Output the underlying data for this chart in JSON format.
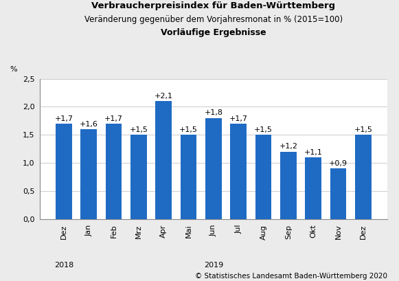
{
  "categories": [
    "Dez",
    "Jan",
    "Feb",
    "Mrz",
    "Apr",
    "Mai",
    "Jun",
    "Jul",
    "Aug",
    "Sep",
    "Okt",
    "Nov",
    "Dez"
  ],
  "values": [
    1.7,
    1.6,
    1.7,
    1.5,
    2.1,
    1.5,
    1.8,
    1.7,
    1.5,
    1.2,
    1.1,
    0.9,
    1.5
  ],
  "labels": [
    "+1,7",
    "+1,6",
    "+1,7",
    "+1,5",
    "+2,1",
    "+1,5",
    "+1,8",
    "+1,7",
    "+1,5",
    "+1,2",
    "+1,1",
    "+0,9",
    "+1,5"
  ],
  "bar_color": "#1F6BC4",
  "title_line1": "Verbraucherpreisindex für Baden-Württemberg",
  "title_line2": "Veränderung gegenüber dem Vorjahresmonat in % (2015=100)",
  "title_line3": "Vorläufige Ergebnisse",
  "ylabel": "%",
  "ylim": [
    0.0,
    2.5
  ],
  "yticks": [
    0.0,
    0.5,
    1.0,
    1.5,
    2.0,
    2.5
  ],
  "ytick_labels": [
    "0,0",
    "0,5",
    "1,0",
    "1,5",
    "2,0",
    "2,5"
  ],
  "year_2018_bar": 0,
  "year_2019_bar": 6,
  "footer": "© Statistisches Landesamt Baden-Württemberg 2020",
  "bg_color": "#EBEBEB",
  "plot_bg_color": "#FFFFFF",
  "grid_color": "#CCCCCC",
  "title_fontsize": 9.5,
  "subtitle_fontsize": 8.5,
  "bold_subtitle_fontsize": 9,
  "label_fontsize": 8,
  "tick_fontsize": 8,
  "footer_fontsize": 7.5,
  "year_fontsize": 8
}
